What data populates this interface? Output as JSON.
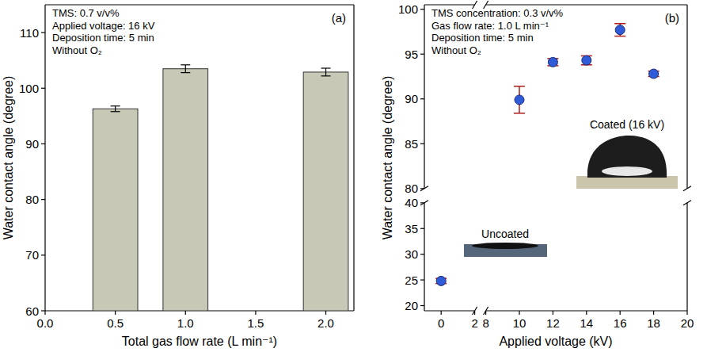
{
  "chart_data": [
    {
      "type": "bar",
      "panel_label": "(a)",
      "x": [
        0.5,
        1.0,
        2.0
      ],
      "values": [
        96.3,
        103.5,
        102.9
      ],
      "errors": [
        0.5,
        0.7,
        0.7
      ],
      "color": "#c8c8b6",
      "xlim": [
        0,
        2.2
      ],
      "xticks": [
        {
          "value": 0,
          "label": "0.0"
        },
        {
          "value": 0.5,
          "label": "0.5"
        },
        {
          "value": 1,
          "label": "1.0"
        },
        {
          "value": 1.5,
          "label": "1.5"
        },
        {
          "value": 2,
          "label": "2.0"
        }
      ],
      "ylim": [
        60,
        115
      ],
      "yticks": [
        60,
        70,
        80,
        90,
        100,
        110
      ],
      "x_label": "Total gas flow rate (L min⁻¹)",
      "y_label": "Water contact angle (degree)",
      "annotations": [
        "TMS: 0.7 v/v%",
        "Applied voltage: 16 kV",
        "Deposition time: 5 min",
        "Without O₂"
      ],
      "grid": false
    },
    {
      "type": "scatter",
      "panel_label": "(b)",
      "x": [
        0,
        10,
        12,
        14,
        16,
        18
      ],
      "values": [
        24.8,
        89.9,
        94.1,
        94.3,
        97.7,
        92.8
      ],
      "errors": [
        0.5,
        1.5,
        0.4,
        0.5,
        0.7,
        0.3
      ],
      "color": "#2f5bd9",
      "marker": "circle",
      "xlim": [
        -1,
        20
      ],
      "xbreak": [
        2,
        8
      ],
      "xticks": [
        0,
        2,
        8,
        10,
        12,
        14,
        16,
        18,
        20
      ],
      "ylim": [
        19,
        100.5
      ],
      "ybreak": [
        40,
        80
      ],
      "yticks": [
        20,
        25,
        30,
        35,
        40,
        80,
        85,
        90,
        95,
        100
      ],
      "x_label": "Applied voltage (kV)",
      "y_label": "Water contact angle (degree)",
      "annotations": [
        "TMS concentration: 0.3 v/v%",
        "Gas flow rate: 1.0 L min⁻¹",
        "Deposition time: 5 min",
        "Without O₂"
      ],
      "inset_labels": [
        "Uncoated",
        "Coated (16 kV)"
      ],
      "grid": false
    }
  ]
}
